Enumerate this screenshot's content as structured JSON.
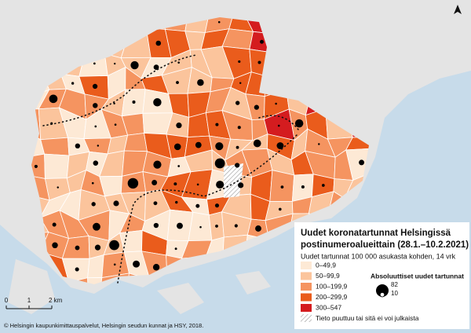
{
  "legend": {
    "title": [
      "Uudet koronatartunnat Helsingissä",
      "postinumeroalueittain (28.1.–10.2.2021)"
    ],
    "subtitle": "Uudet tartunnat 100 000 asukasta kohden, 14 vrk",
    "classes": [
      {
        "label": "0–49,9",
        "color": "#fde9d5"
      },
      {
        "label": "50–99,9",
        "color": "#fbc49c"
      },
      {
        "label": "100–199,9",
        "color": "#f59460"
      },
      {
        "label": "200–299,9",
        "color": "#ea5c1c"
      },
      {
        "label": "300–547",
        "color": "#d41c1f"
      }
    ],
    "missing": "Tieto puuttuu tai sitä ei voi julkaista",
    "size_title": "Absoluuttiset uudet tartunnat",
    "sizes": [
      82,
      10
    ]
  },
  "scale": {
    "labels": [
      "0",
      "1",
      "2 km"
    ]
  },
  "credit": "© Helsingin kaupunkimittauspalvelut, Helsingin seudun kunnat ja HSY, 2018."
}
